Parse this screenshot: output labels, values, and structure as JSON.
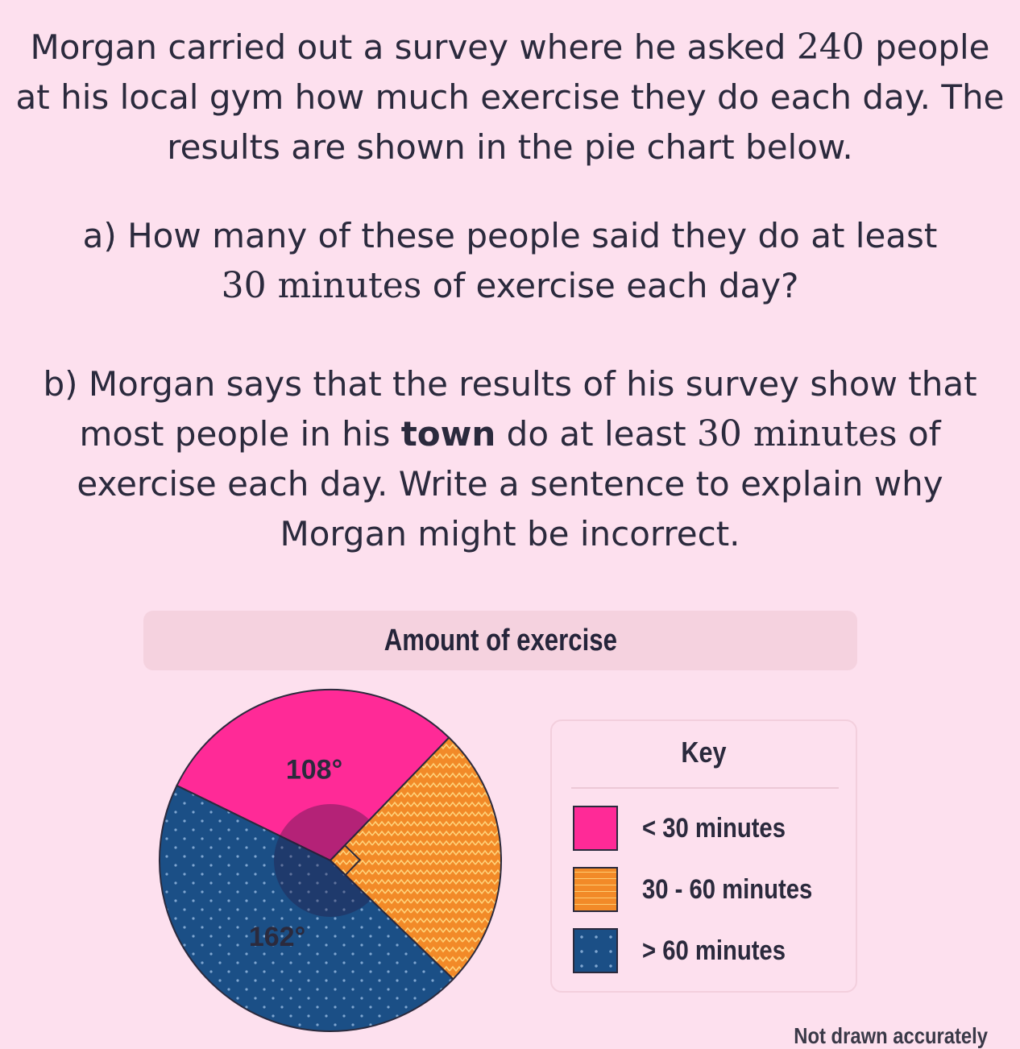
{
  "question": {
    "intro_a": "Morgan carried out a survey where he asked ",
    "intro_num": "240",
    "intro_b": " people",
    "intro_line2": "at his local gym how much exercise they do each day. The",
    "intro_line3": "results are shown in the pie chart below.",
    "a_line1": "a) How many of these people said they do at least",
    "a_math": "30 minutes",
    "a_line2_rest": " of exercise each day?",
    "b_line1": "b) Morgan says that the results of his survey show that",
    "b_line2_a": "most people in his ",
    "b_bold": "town",
    "b_line2_b": " do at least ",
    "b_math": "30 minutes",
    "b_line2_c": " of",
    "b_line3": "exercise each day. Write a sentence to explain why",
    "b_line4": "Morgan might be incorrect."
  },
  "chart_data": {
    "type": "pie",
    "title": "Amount of exercise",
    "key_title": "Key",
    "slices": [
      {
        "label": "< 30 minutes",
        "angle": 108,
        "angle_label": "108°",
        "color": "#ff2a97",
        "pattern": "solid"
      },
      {
        "label": "30 - 60 minutes",
        "angle": 90,
        "angle_label": "",
        "color": "#f28a28",
        "pattern": "zigzag"
      },
      {
        "label": "> 60 minutes",
        "angle": 162,
        "angle_label": "162°",
        "color": "#1b4f86",
        "pattern": "dots"
      }
    ],
    "note": "Not drawn accurately"
  }
}
